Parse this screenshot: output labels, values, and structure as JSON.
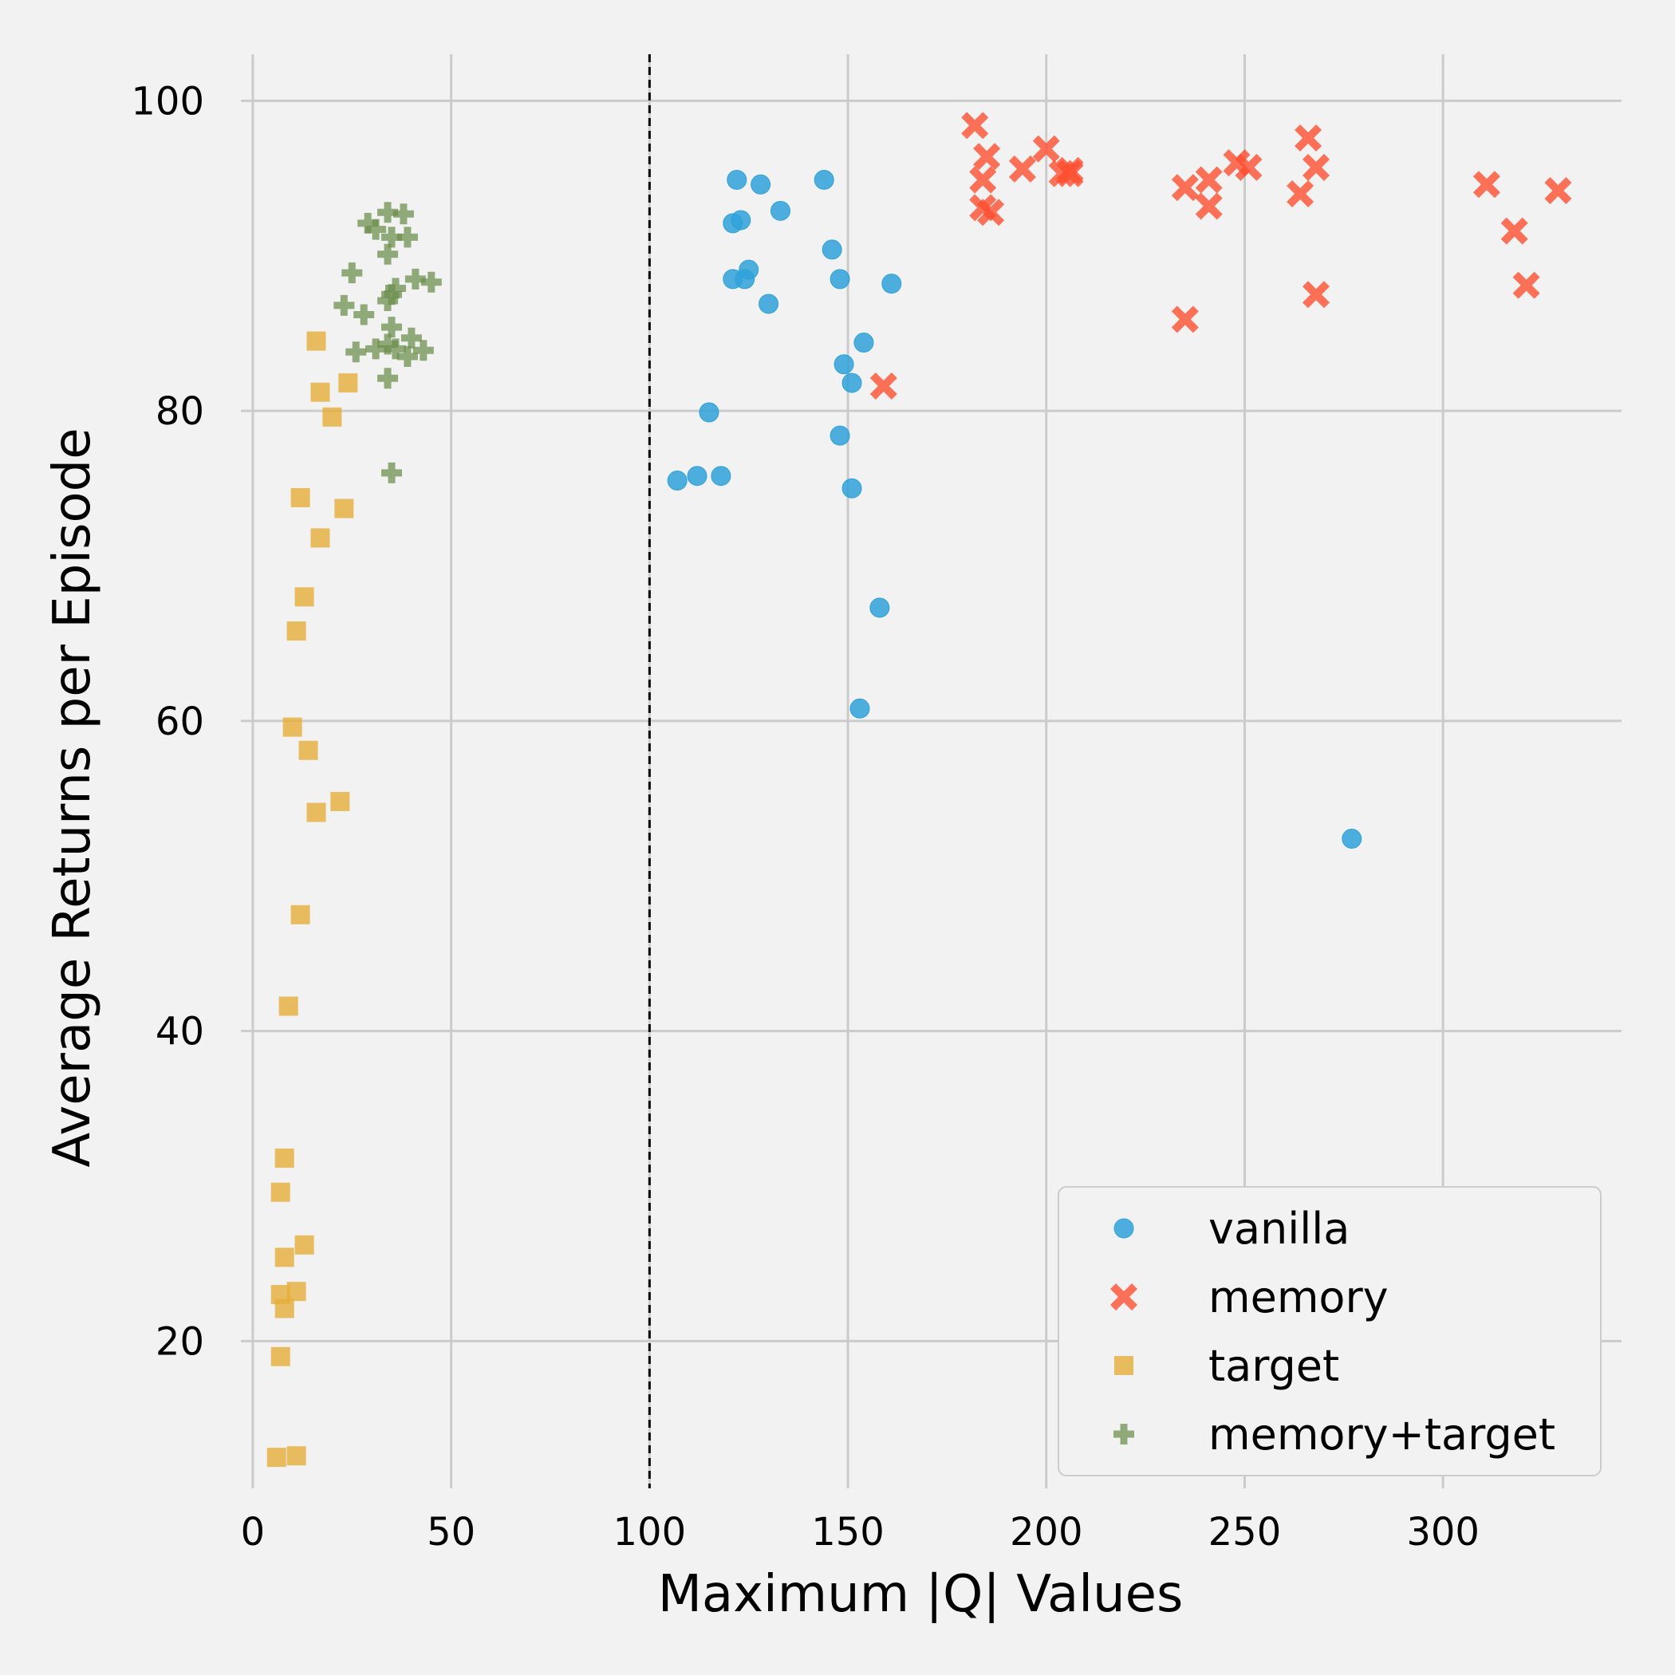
{
  "chart_data": {
    "type": "scatter",
    "title": "",
    "xlabel": "Maximum |Q| Values",
    "ylabel": "Average Returns per Episode",
    "xlim": [
      -3,
      345
    ],
    "ylim": [
      10.5,
      103
    ],
    "xticks": [
      0,
      50,
      100,
      150,
      200,
      250,
      300
    ],
    "yticks": [
      20,
      40,
      60,
      80,
      100
    ],
    "grid": true,
    "legend_position": "bottom-right",
    "reference_line": {
      "orientation": "vertical",
      "x": 100,
      "style": "dashed",
      "color": "#000000"
    },
    "series": [
      {
        "name": "vanilla",
        "marker": "circle",
        "color": "#30a2da",
        "points": [
          [
            107,
            75.5
          ],
          [
            112,
            75.8
          ],
          [
            118,
            75.8
          ],
          [
            115,
            79.9
          ],
          [
            122,
            94.9
          ],
          [
            128,
            94.6
          ],
          [
            144,
            94.9
          ],
          [
            121,
            92.1
          ],
          [
            123,
            92.3
          ],
          [
            133,
            92.9
          ],
          [
            146,
            90.4
          ],
          [
            121,
            88.5
          ],
          [
            124,
            88.5
          ],
          [
            125,
            89.1
          ],
          [
            130,
            86.9
          ],
          [
            148,
            88.5
          ],
          [
            161,
            88.2
          ],
          [
            154,
            84.4
          ],
          [
            149,
            83
          ],
          [
            151,
            81.8
          ],
          [
            148,
            78.4
          ],
          [
            151,
            75
          ],
          [
            158,
            67.3
          ],
          [
            153,
            60.8
          ],
          [
            277,
            52.4
          ]
        ]
      },
      {
        "name": "memory",
        "marker": "x",
        "color": "#fc4f30",
        "points": [
          [
            182,
            98.4
          ],
          [
            185,
            96.4
          ],
          [
            184,
            94.9
          ],
          [
            184,
            93.1
          ],
          [
            186,
            92.8
          ],
          [
            194,
            95.6
          ],
          [
            200,
            96.9
          ],
          [
            204,
            95.3
          ],
          [
            206,
            95.3
          ],
          [
            206,
            95.5
          ],
          [
            235,
            94.4
          ],
          [
            241,
            94.9
          ],
          [
            241,
            93.2
          ],
          [
            248,
            96
          ],
          [
            251,
            95.7
          ],
          [
            264,
            94
          ],
          [
            266,
            97.6
          ],
          [
            268,
            95.7
          ],
          [
            268,
            87.5
          ],
          [
            235,
            85.9
          ],
          [
            159,
            81.6
          ],
          [
            311,
            94.6
          ],
          [
            318,
            91.6
          ],
          [
            321,
            88.1
          ],
          [
            329,
            94.2
          ]
        ]
      },
      {
        "name": "target",
        "marker": "square",
        "color": "#e5ae38",
        "points": [
          [
            16,
            84.5
          ],
          [
            17,
            81.2
          ],
          [
            24,
            81.8
          ],
          [
            20,
            79.6
          ],
          [
            12,
            74.4
          ],
          [
            23,
            73.7
          ],
          [
            17,
            71.8
          ],
          [
            13,
            68
          ],
          [
            11,
            65.8
          ],
          [
            10,
            59.6
          ],
          [
            14,
            58.1
          ],
          [
            16,
            54.1
          ],
          [
            22,
            54.8
          ],
          [
            12,
            47.5
          ],
          [
            9,
            41.6
          ],
          [
            8,
            31.8
          ],
          [
            7,
            29.6
          ],
          [
            13,
            26.2
          ],
          [
            8,
            25.4
          ],
          [
            7,
            23
          ],
          [
            11,
            23.2
          ],
          [
            8,
            22.1
          ],
          [
            7,
            19
          ],
          [
            6,
            12.5
          ],
          [
            11,
            12.6
          ]
        ]
      },
      {
        "name": "memory+target",
        "marker": "plus",
        "color": "#6d904f",
        "points": [
          [
            34,
            92.8
          ],
          [
            38,
            92.7
          ],
          [
            29,
            92.1
          ],
          [
            31,
            91.7
          ],
          [
            35,
            91.2
          ],
          [
            39,
            91.2
          ],
          [
            34,
            90.1
          ],
          [
            25,
            88.9
          ],
          [
            35,
            87.5
          ],
          [
            36,
            87.9
          ],
          [
            41,
            88.5
          ],
          [
            45,
            88.3
          ],
          [
            23,
            86.8
          ],
          [
            28,
            86.2
          ],
          [
            34,
            87.1
          ],
          [
            35,
            85.4
          ],
          [
            26,
            83.8
          ],
          [
            31,
            84
          ],
          [
            34,
            84.3
          ],
          [
            36,
            84
          ],
          [
            40,
            84.7
          ],
          [
            39,
            83.5
          ],
          [
            43,
            83.9
          ],
          [
            34,
            82.1
          ],
          [
            35,
            76
          ]
        ]
      }
    ]
  }
}
